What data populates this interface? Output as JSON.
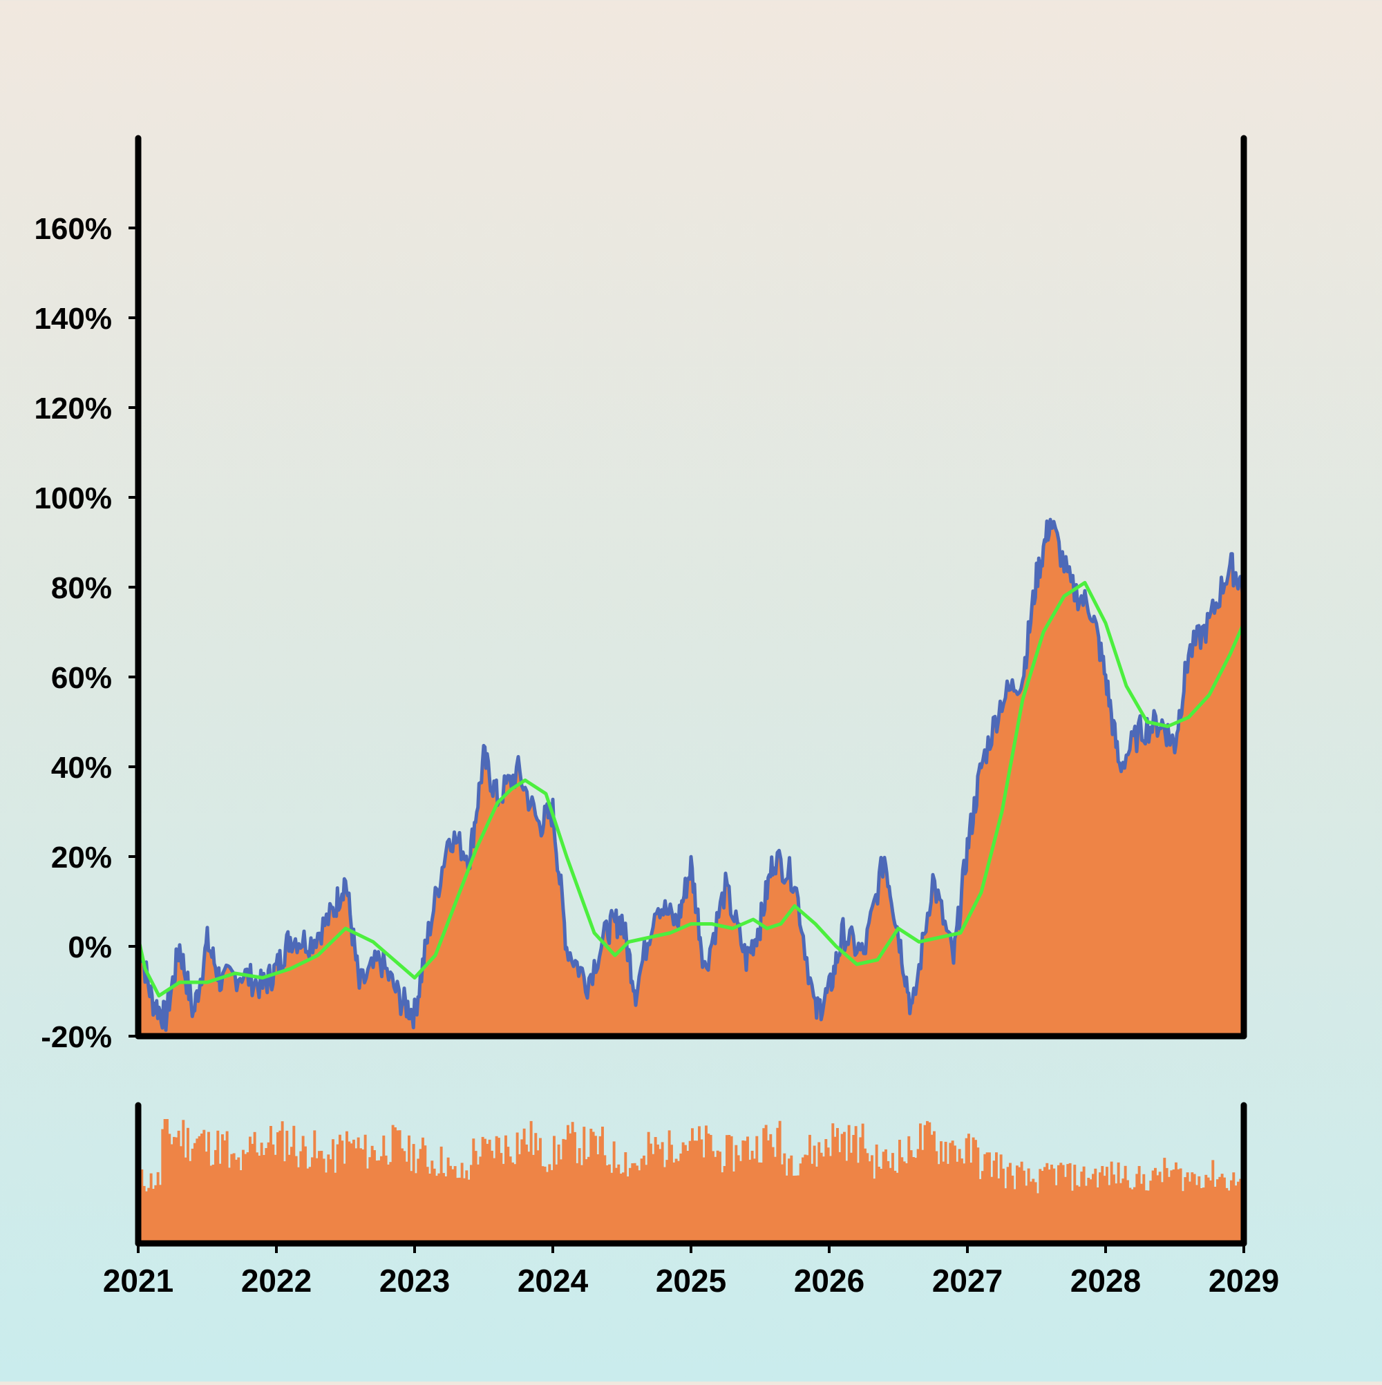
{
  "chart_data": {
    "type": "area",
    "title": "",
    "xlabel": "",
    "ylabel": "",
    "x_range": [
      2021,
      2029
    ],
    "ylim": [
      -20,
      180
    ],
    "y_ticks": [
      -20,
      0,
      20,
      40,
      60,
      80,
      100,
      120,
      140,
      160
    ],
    "y_tick_format": "{v}%",
    "x_ticks": [
      2021,
      2022,
      2023,
      2024,
      2025,
      2026,
      2027,
      2028,
      2029
    ],
    "grid": false,
    "legend": "none",
    "colors": {
      "area_fill": "#ee8446",
      "price_line": "#4d69b8",
      "moving_average": "#4cef3e",
      "axis": "#000000",
      "volume_bars": "#ee8446"
    },
    "series": [
      {
        "kind": "area_line",
        "x": [
          2021.0,
          2021.1,
          2021.2,
          2021.3,
          2021.4,
          2021.5,
          2021.6,
          2021.75,
          2021.9,
          2022.0,
          2022.1,
          2022.25,
          2022.4,
          2022.5,
          2022.6,
          2022.75,
          2022.9,
          2023.0,
          2023.1,
          2023.25,
          2023.4,
          2023.5,
          2023.6,
          2023.75,
          2023.9,
          2024.0,
          2024.1,
          2024.25,
          2024.4,
          2024.5,
          2024.6,
          2024.75,
          2024.9,
          2025.0,
          2025.1,
          2025.25,
          2025.4,
          2025.5,
          2025.6,
          2025.75,
          2025.9,
          2026.0,
          2026.1,
          2026.25,
          2026.4,
          2026.5,
          2026.6,
          2026.75,
          2026.9,
          2027.0,
          2027.1,
          2027.25,
          2027.4,
          2027.5,
          2027.6,
          2027.75,
          2027.9,
          2028.0,
          2028.1,
          2028.25,
          2028.4,
          2028.5,
          2028.6,
          2028.75,
          2028.9,
          2029.0
        ],
        "y": [
          2,
          -12,
          -16,
          0,
          -15,
          1,
          -8,
          -6,
          -9,
          -5,
          2,
          1,
          7,
          15,
          -9,
          -3,
          -12,
          -15,
          3,
          25,
          20,
          42,
          33,
          39,
          27,
          30,
          0,
          -8,
          4,
          6,
          -10,
          10,
          5,
          18,
          -5,
          13,
          -3,
          5,
          20,
          15,
          -15,
          -10,
          3,
          -2,
          20,
          3,
          -15,
          15,
          -3,
          22,
          40,
          55,
          60,
          82,
          95,
          80,
          75,
          60,
          40,
          48,
          50,
          45,
          65,
          72,
          85,
          80
        ]
      },
      {
        "kind": "moving_average",
        "x": [
          2021.0,
          2021.05,
          2021.15,
          2021.3,
          2021.5,
          2021.7,
          2021.9,
          2022.1,
          2022.3,
          2022.5,
          2022.7,
          2022.85,
          2023.0,
          2023.15,
          2023.3,
          2023.45,
          2023.6,
          2023.7,
          2023.8,
          2023.95,
          2024.1,
          2024.3,
          2024.45,
          2024.55,
          2024.7,
          2024.85,
          2025.0,
          2025.15,
          2025.3,
          2025.45,
          2025.55,
          2025.65,
          2025.75,
          2025.9,
          2026.05,
          2026.2,
          2026.35,
          2026.5,
          2026.65,
          2026.8,
          2026.95,
          2027.1,
          2027.25,
          2027.4,
          2027.55,
          2027.7,
          2027.85,
          2028.0,
          2028.15,
          2028.3,
          2028.45,
          2028.6,
          2028.75,
          2028.9,
          2029.0
        ],
        "y": [
          2,
          -5,
          -11,
          -8,
          -8,
          -6,
          -7,
          -5,
          -2,
          4,
          1,
          -3,
          -7,
          -2,
          10,
          22,
          32,
          35,
          37,
          34,
          20,
          3,
          -2,
          1,
          2,
          3,
          5,
          5,
          4,
          6,
          4,
          5,
          9,
          5,
          0,
          -4,
          -3,
          4,
          1,
          2,
          3,
          12,
          30,
          55,
          70,
          78,
          81,
          72,
          58,
          50,
          49,
          51,
          56,
          65,
          72
        ]
      }
    ],
    "volume": {
      "x_range": [
        2021,
        2029
      ],
      "bars": 480,
      "relative_heights": [
        0.55,
        0.95,
        0.9,
        0.85,
        0.7,
        0.88,
        0.9,
        0.82,
        0.75,
        0.85,
        0.8,
        0.86,
        0.78,
        0.72,
        0.6,
        0.8,
        0.85,
        0.9,
        0.78,
        0.88,
        0.85,
        0.75,
        0.7,
        0.82,
        0.9,
        0.86,
        0.78,
        0.84,
        0.9,
        0.75,
        0.8,
        0.92,
        0.88,
        0.72,
        0.78,
        0.9,
        0.85,
        0.8,
        0.7,
        0.6,
        0.55,
        0.62,
        0.58,
        0.6,
        0.6,
        0.56,
        0.62,
        0.58,
        0.6,
        0.55
      ]
    }
  }
}
